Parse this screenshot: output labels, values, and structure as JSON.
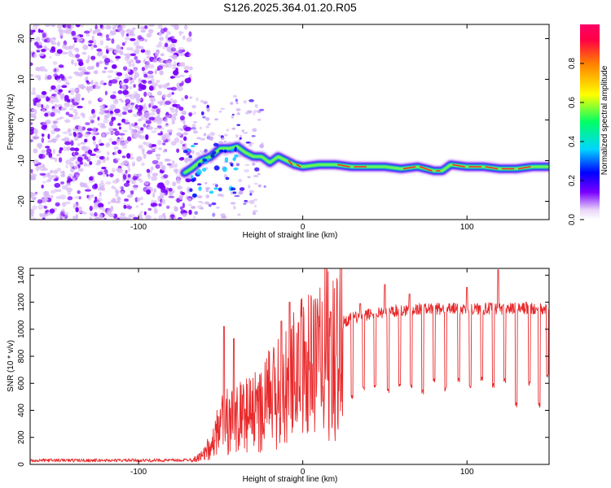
{
  "title": "S126.2025.364.01.20.R05",
  "chart_data": [
    {
      "type": "heatmap",
      "xlabel": "Height of straight line (km)",
      "ylabel": "Frequency (Hz)",
      "xlim": [
        -166,
        150
      ],
      "ylim": [
        -24.5,
        23.5
      ],
      "xticks": [
        -100,
        0,
        100
      ],
      "yticks": [
        -20,
        -10,
        0,
        10,
        20
      ],
      "colorbar": {
        "label": "Normalized spectral amplitude",
        "range": [
          0.0,
          1.0
        ],
        "ticks": [
          0.0,
          0.2,
          0.4,
          0.6,
          0.8
        ],
        "tick_labels": [
          "0.0",
          "0.2",
          "0.4",
          "0.6",
          "0.8"
        ],
        "colors": [
          "#ffffff",
          "#e8d5f8",
          "#7a00ff",
          "#0000ff",
          "#00d5ff",
          "#00ff66",
          "#ffff00",
          "#ff7f00",
          "#ff0044",
          "#ff0066"
        ]
      },
      "noise_region_x": [
        -166,
        -68
      ],
      "ridge": {
        "x": [
          -72,
          -68,
          -62,
          -56,
          -50,
          -44,
          -40,
          -35,
          -30,
          -25,
          -20,
          -15,
          -10,
          -5,
          0,
          10,
          20,
          30,
          40,
          50,
          60,
          70,
          80,
          85,
          90,
          100,
          110,
          120,
          130,
          140,
          150
        ],
        "y": [
          -13,
          -12,
          -10,
          -9,
          -7,
          -7,
          -6.5,
          -8,
          -9,
          -9,
          -10.5,
          -9,
          -10,
          -11,
          -11.5,
          -11,
          -11,
          -11.5,
          -11.5,
          -11.5,
          -12,
          -11.5,
          -12.5,
          -12.5,
          -11,
          -11.5,
          -11.5,
          -12,
          -12,
          -11.5,
          -11.5
        ],
        "peak_amplitude": 1.0
      }
    },
    {
      "type": "line",
      "xlabel": "Height of straight line (km)",
      "ylabel": "SNR (10 * v/v)",
      "xlim": [
        -166,
        150
      ],
      "ylim": [
        0,
        1450
      ],
      "xticks": [
        -100,
        0,
        100
      ],
      "yticks": [
        0,
        200,
        400,
        600,
        800,
        1000,
        1200,
        1400
      ],
      "color": "#e8292b",
      "series": [
        {
          "x": [
            -166,
            -150,
            -130,
            -110,
            -90,
            -75,
            -65,
            -60,
            -55,
            -50,
            -45,
            -40,
            -35,
            -30,
            -25,
            -20,
            -15,
            -10,
            -5,
            0,
            5,
            10,
            15,
            20,
            25,
            30,
            40,
            50,
            60,
            70,
            80,
            90,
            100,
            110,
            120,
            130,
            140,
            150
          ],
          "y": [
            30,
            30,
            30,
            30,
            30,
            30,
            40,
            80,
            200,
            320,
            380,
            400,
            420,
            450,
            500,
            560,
            620,
            680,
            760,
            820,
            880,
            930,
            980,
            1030,
            1060,
            1080,
            1110,
            1130,
            1140,
            1150,
            1150,
            1150,
            1150,
            1150,
            1155,
            1150,
            1150,
            1150
          ]
        }
      ],
      "spikes_up": [
        {
          "x": -48,
          "y": 1020
        },
        {
          "x": -42,
          "y": 930
        },
        {
          "x": -13,
          "y": 1060
        },
        {
          "x": -8,
          "y": 1200
        },
        {
          "x": 17,
          "y": 1130
        },
        {
          "x": 35,
          "y": 1190
        },
        {
          "x": 50,
          "y": 1330
        },
        {
          "x": 65,
          "y": 1260
        },
        {
          "x": 80,
          "y": 1280
        },
        {
          "x": 100,
          "y": 1310
        },
        {
          "x": 119,
          "y": 1440
        },
        {
          "x": 136,
          "y": 1200
        }
      ],
      "dropouts": [
        {
          "x": 30,
          "y": 480
        },
        {
          "x": 37,
          "y": 540
        },
        {
          "x": 44,
          "y": 560
        },
        {
          "x": 52,
          "y": 520
        },
        {
          "x": 59,
          "y": 560
        },
        {
          "x": 66,
          "y": 560
        },
        {
          "x": 73,
          "y": 520
        },
        {
          "x": 80,
          "y": 600
        },
        {
          "x": 87,
          "y": 540
        },
        {
          "x": 95,
          "y": 600
        },
        {
          "x": 102,
          "y": 560
        },
        {
          "x": 109,
          "y": 620
        },
        {
          "x": 116,
          "y": 560
        },
        {
          "x": 123,
          "y": 600
        },
        {
          "x": 130,
          "y": 420
        },
        {
          "x": 138,
          "y": 580
        },
        {
          "x": 144,
          "y": 420
        },
        {
          "x": 149,
          "y": 640
        }
      ]
    }
  ]
}
